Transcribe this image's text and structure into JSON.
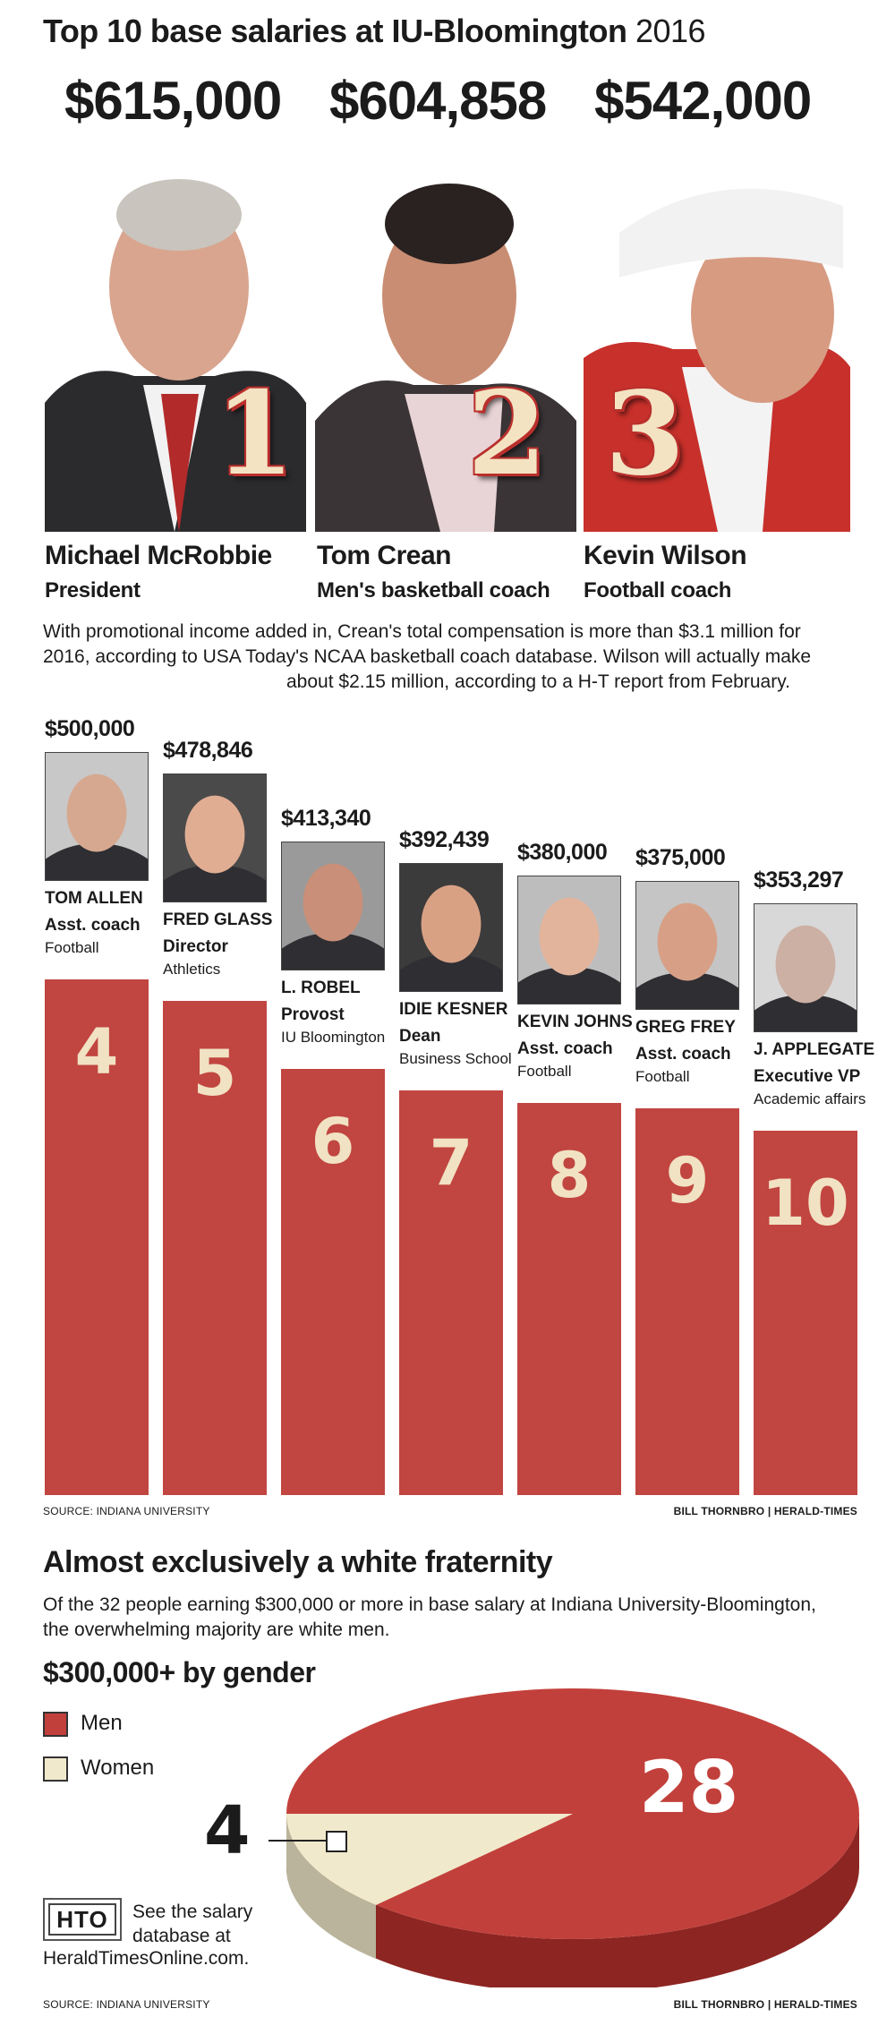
{
  "title": {
    "main": "Top 10 base salaries at IU-Bloomington",
    "year": "2016"
  },
  "top3": [
    {
      "rank": "1",
      "salary": "$615,000",
      "name": "Michael McRobbie",
      "role": "President",
      "photo_color": "#2b2b2e"
    },
    {
      "rank": "2",
      "salary": "$604,858",
      "name": "Tom Crean",
      "role": "Men's basketball coach",
      "photo_color": "#3a3436"
    },
    {
      "rank": "3",
      "salary": "$542,000",
      "name": "Kevin Wilson",
      "role": "Football coach",
      "photo_color": "#c8302b"
    }
  ],
  "note": {
    "line1": "With promotional income added in, Crean's total compensation is more than $3.1 million for",
    "line2": "2016, according to USA Today's NCAA basketball coach database. Wilson will actually make",
    "line3": "about $2.15 million, according to a H-T report from February."
  },
  "chart_data": {
    "type": "bar",
    "title": "Top 10 base salaries at IU-Bloomington 2016",
    "categories": [
      "TOM ALLEN",
      "FRED GLASS",
      "L. ROBEL",
      "IDIE KESNER",
      "KEVIN JOHNS",
      "GREG FREY",
      "J. APPLEGATE"
    ],
    "ranks": [
      "4",
      "5",
      "6",
      "7",
      "8",
      "9",
      "10"
    ],
    "values": [
      500000,
      478846,
      413340,
      392439,
      380000,
      375000,
      353297
    ],
    "value_labels": [
      "$500,000",
      "$478,846",
      "$413,340",
      "$392,439",
      "$380,000",
      "$375,000",
      "$353,297"
    ],
    "titles": [
      "Asst. coach",
      "Director",
      "Provost",
      "Dean",
      "Asst. coach",
      "Asst. coach",
      "Executive VP"
    ],
    "departments": [
      "Football",
      "Athletics",
      "IU Bloomington",
      "Business School",
      "Football",
      "Football",
      "Academic affairs"
    ],
    "bar_color": "#c14540",
    "rank_color": "#f1e2c3"
  },
  "bar_source": "SOURCE: INDIANA UNIVERSITY",
  "bar_credit": "BILL THORNBRO | HERALD-TIMES",
  "section2": {
    "title": "Almost exclusively a white fraternity",
    "text_line1": "Of the 32 people earning $300,000 or more in base salary at Indiana University-Bloomington,",
    "text_line2": "the overwhelming majority are white men.",
    "subtitle": "$300,000+ by gender"
  },
  "pie_data": {
    "type": "pie",
    "title": "$300,000+ by gender",
    "categories": [
      "Men",
      "Women"
    ],
    "values": [
      28,
      4
    ],
    "colors": [
      "#c2403b",
      "#f1e9cc"
    ]
  },
  "legend": {
    "men": "Men",
    "women": "Women"
  },
  "pie_labels": {
    "men": "28",
    "women": "4"
  },
  "hto": {
    "logo": "HTO",
    "line1": "See the salary",
    "line2": "database at",
    "url": "HeraldTimesOnline.com."
  },
  "bottom_source": "SOURCE: INDIANA UNIVERSITY",
  "bottom_credit": "BILL THORNBRO | HERALD-TIMES"
}
